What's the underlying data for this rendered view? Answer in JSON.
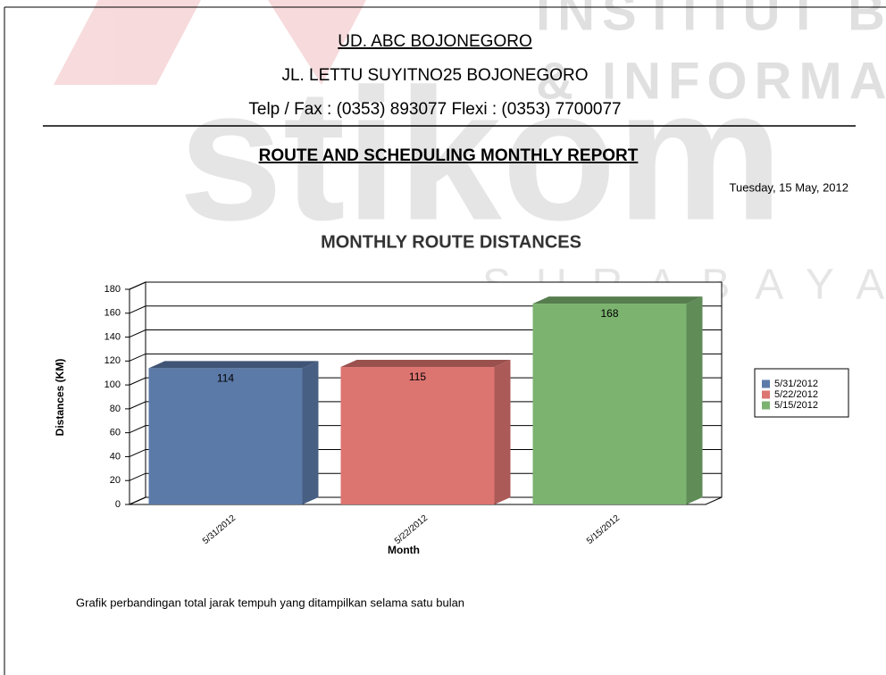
{
  "watermark": {
    "line1": "INSTITUT BISN",
    "line2": "& INFORMATIK",
    "logo": "stikom",
    "line3": "SURABAYA"
  },
  "header": {
    "company": "UD. ABC BOJONEGORO",
    "address": "JL. LETTU SUYITNO25 BOJONEGORO",
    "contact": "Telp / Fax : (0353) 893077 Flexi : (0353) 7700077"
  },
  "report_title": "ROUTE AND SCHEDULING MONTHLY REPORT",
  "date": "Tuesday, 15 May, 2012",
  "chart_data": {
    "type": "bar3d",
    "title": "MONTHLY ROUTE DISTANCES",
    "x_label": "Month",
    "y_label": "Distances (KM)",
    "categories": [
      "5/31/2012",
      "5/22/2012",
      "5/15/2012"
    ],
    "values": [
      114,
      115,
      168
    ],
    "colors": [
      "#5b7aa8",
      "#dc7470",
      "#7bb36f"
    ],
    "ylim": [
      0,
      180
    ],
    "yticks": [
      0,
      20,
      40,
      60,
      80,
      100,
      120,
      140,
      160,
      180
    ],
    "grid": true,
    "legend": "right"
  },
  "caption": "Grafik perbandingan total jarak tempuh yang ditampilkan selama satu bulan"
}
